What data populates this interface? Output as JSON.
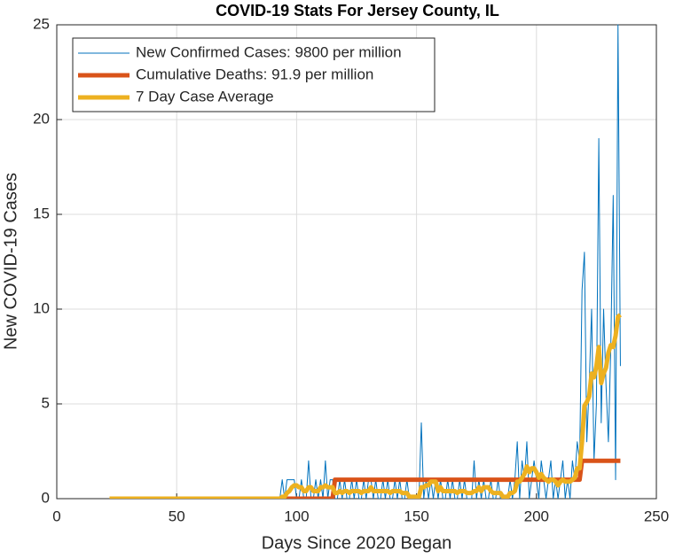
{
  "chart_data": {
    "type": "line",
    "title": "COVID-19 Stats For Jersey County, IL",
    "xlabel": "Days Since 2020 Began",
    "ylabel": "New COVID-19 Cases",
    "xlim": [
      0,
      250
    ],
    "xticks": [
      0,
      50,
      100,
      150,
      200,
      250
    ],
    "ylim": [
      0,
      25
    ],
    "yticks": [
      0,
      5,
      10,
      15,
      20,
      25
    ],
    "grid": true,
    "legend": "northwest",
    "x": [
      22,
      23,
      24,
      25,
      26,
      27,
      28,
      29,
      30,
      31,
      32,
      33,
      34,
      35,
      36,
      37,
      38,
      39,
      40,
      41,
      42,
      43,
      44,
      45,
      46,
      47,
      48,
      49,
      50,
      51,
      52,
      53,
      54,
      55,
      56,
      57,
      58,
      59,
      60,
      61,
      62,
      63,
      64,
      65,
      66,
      67,
      68,
      69,
      70,
      71,
      72,
      73,
      74,
      75,
      76,
      77,
      78,
      79,
      80,
      81,
      82,
      83,
      84,
      85,
      86,
      87,
      88,
      89,
      90,
      91,
      92,
      93,
      94,
      95,
      96,
      97,
      98,
      99,
      100,
      101,
      102,
      103,
      104,
      105,
      106,
      107,
      108,
      109,
      110,
      111,
      112,
      113,
      114,
      115,
      116,
      117,
      118,
      119,
      120,
      121,
      122,
      123,
      124,
      125,
      126,
      127,
      128,
      129,
      130,
      131,
      132,
      133,
      134,
      135,
      136,
      137,
      138,
      139,
      140,
      141,
      142,
      143,
      144,
      145,
      146,
      147,
      148,
      149,
      150,
      151,
      152,
      153,
      154,
      155,
      156,
      157,
      158,
      159,
      160,
      161,
      162,
      163,
      164,
      165,
      166,
      167,
      168,
      169,
      170,
      171,
      172,
      173,
      174,
      175,
      176,
      177,
      178,
      179,
      180,
      181,
      182,
      183,
      184,
      185,
      186,
      187,
      188,
      189,
      190,
      191,
      192,
      193,
      194,
      195,
      196,
      197,
      198,
      199,
      200,
      201,
      202,
      203,
      204,
      205,
      206,
      207,
      208,
      209,
      210,
      211,
      212,
      213,
      214,
      215,
      216,
      217,
      218,
      219,
      220,
      221,
      222,
      223,
      224,
      225,
      226,
      227,
      228,
      229,
      230,
      231,
      232,
      233,
      234,
      235
    ],
    "series": [
      {
        "name": "New Confirmed Cases: 9800 per million",
        "color": "#0072bd",
        "width": 1,
        "values": [
          0,
          0,
          0,
          0,
          0,
          0,
          0,
          0,
          0,
          0,
          0,
          0,
          0,
          0,
          0,
          0,
          0,
          0,
          0,
          0,
          0,
          0,
          0,
          0,
          0,
          0,
          0,
          0,
          0,
          0,
          0,
          0,
          0,
          0,
          0,
          0,
          0,
          0,
          0,
          0,
          0,
          0,
          0,
          0,
          0,
          0,
          0,
          0,
          0,
          0,
          0,
          0,
          0,
          0,
          0,
          0,
          0,
          0,
          0,
          0,
          0,
          0,
          0,
          0,
          0,
          0,
          0,
          0,
          0,
          0,
          0,
          0,
          1,
          0,
          1,
          1,
          1,
          1,
          0,
          0,
          1,
          0,
          0,
          2,
          0,
          0,
          1,
          0,
          1,
          0,
          2,
          0,
          1,
          1,
          0,
          0,
          1,
          0,
          1,
          0,
          0,
          1,
          0,
          1,
          0,
          0,
          1,
          0,
          1,
          1,
          0,
          1,
          0,
          0,
          1,
          0,
          1,
          0,
          0,
          1,
          0,
          1,
          0,
          0,
          1,
          0,
          0,
          0,
          0,
          0,
          4,
          0,
          1,
          0,
          1,
          0,
          1,
          0,
          1,
          0,
          0,
          1,
          0,
          1,
          0,
          0,
          1,
          0,
          1,
          0,
          0,
          0,
          2,
          0,
          1,
          0,
          1,
          0,
          0,
          1,
          0,
          0,
          1,
          0,
          0,
          0,
          0,
          1,
          0,
          1,
          3,
          0,
          2,
          1,
          3,
          0,
          1,
          2,
          1,
          0,
          2,
          1,
          0,
          1,
          2,
          0,
          1,
          0,
          1,
          2,
          0,
          1,
          0,
          2,
          1,
          3,
          2,
          11,
          13,
          3,
          6,
          10,
          2,
          5,
          19,
          4,
          10,
          6,
          3,
          8,
          16,
          1,
          25,
          7
        ]
      },
      {
        "name": "Cumulative Deaths: 91.9 per million",
        "color": "#d95319",
        "width": 5,
        "values": [
          0,
          0,
          0,
          0,
          0,
          0,
          0,
          0,
          0,
          0,
          0,
          0,
          0,
          0,
          0,
          0,
          0,
          0,
          0,
          0,
          0,
          0,
          0,
          0,
          0,
          0,
          0,
          0,
          0,
          0,
          0,
          0,
          0,
          0,
          0,
          0,
          0,
          0,
          0,
          0,
          0,
          0,
          0,
          0,
          0,
          0,
          0,
          0,
          0,
          0,
          0,
          0,
          0,
          0,
          0,
          0,
          0,
          0,
          0,
          0,
          0,
          0,
          0,
          0,
          0,
          0,
          0,
          0,
          0,
          0,
          0,
          0,
          0,
          0,
          0,
          0,
          0,
          0,
          0,
          0,
          0,
          0,
          0,
          0,
          0,
          0,
          0,
          0,
          0,
          0,
          0,
          0,
          0,
          0,
          1,
          1,
          1,
          1,
          1,
          1,
          1,
          1,
          1,
          1,
          1,
          1,
          1,
          1,
          1,
          1,
          1,
          1,
          1,
          1,
          1,
          1,
          1,
          1,
          1,
          1,
          1,
          1,
          1,
          1,
          1,
          1,
          1,
          1,
          1,
          1,
          1,
          1,
          1,
          1,
          1,
          1,
          1,
          1,
          1,
          1,
          1,
          1,
          1,
          1,
          1,
          1,
          1,
          1,
          1,
          1,
          1,
          1,
          1,
          1,
          1,
          1,
          1,
          1,
          1,
          1,
          1,
          1,
          1,
          1,
          1,
          1,
          1,
          1,
          1,
          1,
          1,
          1,
          1,
          1,
          1,
          1,
          1,
          1,
          1,
          1,
          1,
          1,
          1,
          1,
          1,
          1,
          1,
          1,
          1,
          1,
          1,
          1,
          1,
          1,
          1,
          1,
          1,
          2,
          2,
          2,
          2,
          2,
          2,
          2,
          2,
          2,
          2,
          2,
          2,
          2,
          2,
          2,
          2,
          2
        ]
      },
      {
        "name": "7 Day Case Average",
        "color": "#edb120",
        "width": 5,
        "values": [
          0,
          0,
          0,
          0,
          0,
          0,
          0,
          0,
          0,
          0,
          0,
          0,
          0,
          0,
          0,
          0,
          0,
          0,
          0,
          0,
          0,
          0,
          0,
          0,
          0,
          0,
          0,
          0,
          0,
          0,
          0,
          0,
          0,
          0,
          0,
          0,
          0,
          0,
          0,
          0,
          0,
          0,
          0,
          0,
          0,
          0,
          0,
          0,
          0,
          0,
          0,
          0,
          0,
          0,
          0,
          0,
          0,
          0,
          0,
          0,
          0,
          0,
          0,
          0,
          0,
          0,
          0,
          0,
          0,
          0,
          0,
          0,
          0.1,
          0.1,
          0.3,
          0.4,
          0.6,
          0.7,
          0.7,
          0.6,
          0.6,
          0.4,
          0.4,
          0.6,
          0.6,
          0.4,
          0.4,
          0.4,
          0.6,
          0.6,
          0.7,
          0.6,
          0.6,
          0.6,
          0.3,
          0.3,
          0.4,
          0.3,
          0.4,
          0.4,
          0.3,
          0.4,
          0.4,
          0.4,
          0.4,
          0.3,
          0.4,
          0.4,
          0.4,
          0.6,
          0.4,
          0.4,
          0.4,
          0.4,
          0.4,
          0.4,
          0.4,
          0.3,
          0.4,
          0.4,
          0.4,
          0.4,
          0.3,
          0.3,
          0.3,
          0.1,
          0.1,
          0.1,
          0.1,
          0.1,
          0.6,
          0.6,
          0.7,
          0.7,
          0.9,
          0.9,
          0.9,
          0.4,
          0.6,
          0.4,
          0.4,
          0.4,
          0.4,
          0.4,
          0.4,
          0.3,
          0.4,
          0.4,
          0.4,
          0.3,
          0.3,
          0.3,
          0.4,
          0.4,
          0.6,
          0.4,
          0.6,
          0.6,
          0.6,
          0.4,
          0.3,
          0.3,
          0.3,
          0.3,
          0.1,
          0.1,
          0.1,
          0.3,
          0.3,
          0.4,
          0.9,
          0.9,
          1.1,
          1.3,
          1.7,
          1.4,
          1.6,
          1.6,
          1.4,
          1.1,
          1.3,
          1.1,
          1.0,
          0.9,
          1.0,
          1.0,
          0.9,
          0.7,
          0.9,
          1.0,
          0.9,
          0.9,
          0.9,
          1.0,
          1.1,
          1.6,
          1.6,
          3.0,
          4.9,
          5.1,
          5.4,
          6.6,
          6.4,
          7.0,
          8.0,
          6.1,
          6.6,
          6.9,
          7.7,
          8.1,
          8.0,
          8.6,
          9.6,
          9.7
        ]
      }
    ]
  }
}
